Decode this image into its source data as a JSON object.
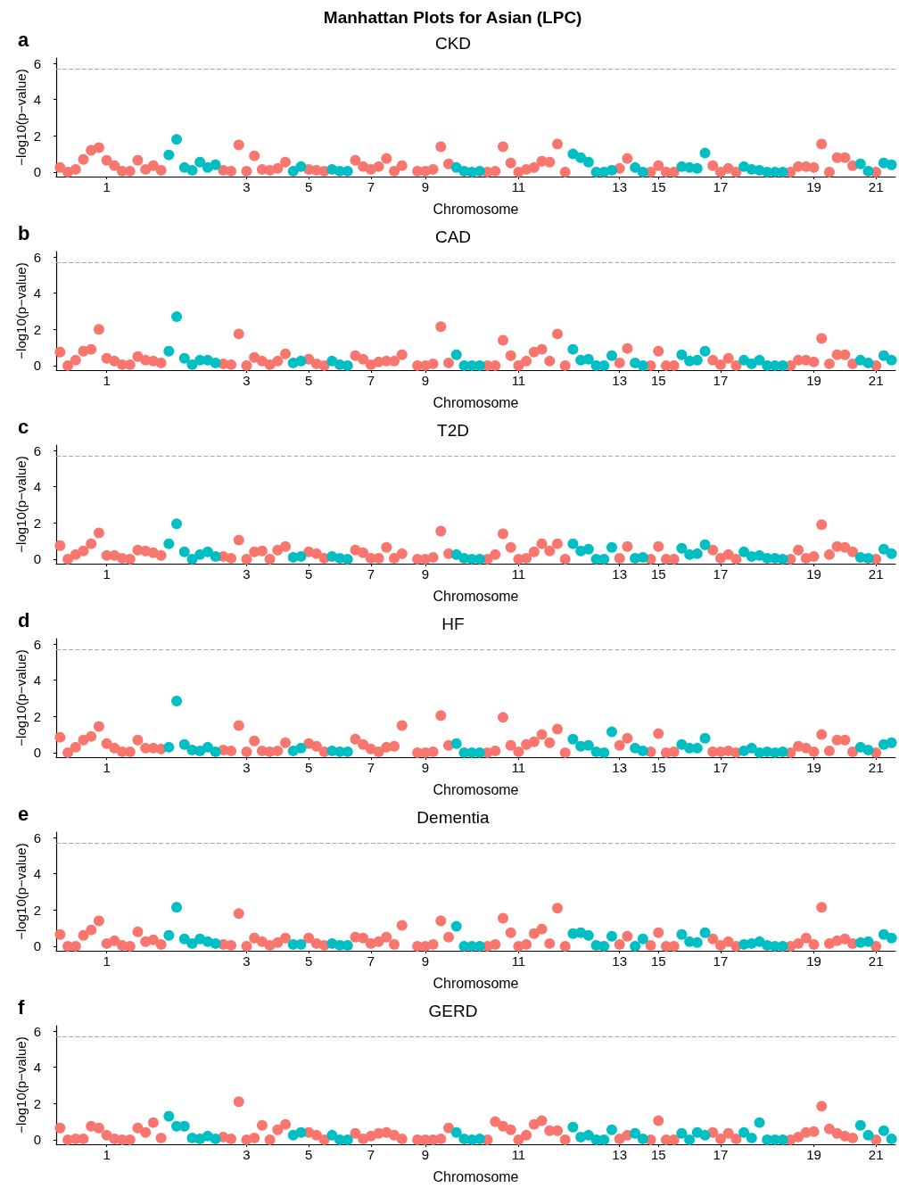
{
  "chart_data": [
    {
      "type": "scatter",
      "title": "CKD",
      "annotations": [
        "Manhattan Plots for Asian (LPC)",
        "a"
      ],
      "xlabel": "Chromosome",
      "ylabel": "−log10(p−value)",
      "marker": "circle",
      "categories": [
        null,
        null,
        null,
        null,
        null,
        null,
        "1",
        null,
        null,
        null,
        null,
        null,
        null,
        null,
        null,
        null,
        null,
        null,
        null,
        null,
        null,
        null,
        null,
        null,
        "3",
        null,
        null,
        null,
        null,
        null,
        null,
        null,
        "5",
        null,
        null,
        null,
        null,
        null,
        null,
        null,
        "7",
        null,
        null,
        null,
        null,
        null,
        null,
        "9",
        null,
        null,
        null,
        null,
        null,
        null,
        null,
        null,
        null,
        null,
        null,
        "11",
        null,
        null,
        null,
        null,
        null,
        null,
        null,
        null,
        null,
        null,
        null,
        null,
        "13",
        null,
        null,
        null,
        null,
        "15",
        null,
        null,
        null,
        null,
        null,
        null,
        null,
        "17",
        null,
        null,
        null,
        null,
        null,
        null,
        null,
        null,
        null,
        null,
        null,
        "19",
        null,
        null,
        null,
        null,
        null,
        null,
        null,
        "21",
        null,
        null
      ],
      "ylim": [
        -0.25,
        6.3
      ],
      "yticks": [
        0,
        2,
        4,
        6
      ],
      "ref_lines": [
        {
          "axis": "y",
          "value": 5.7,
          "color": "#a6a6a6",
          "line_style": "dashed"
        }
      ],
      "series": [
        {
          "color": "#f8766d",
          "values": [
            0.25,
            0,
            0.15,
            0.7,
            1.2,
            1.35,
            0.65,
            0.35,
            0.05,
            0.05,
            0.65,
            0.15,
            0.35,
            0.1,
            null,
            null,
            null,
            null,
            null,
            null,
            null,
            0.1,
            0.05,
            1.5,
            0.05,
            0.9,
            0.15,
            0.1,
            0.2,
            0.55,
            null,
            null,
            0.15,
            0.1,
            0.05,
            null,
            null,
            null,
            0.65,
            0.3,
            0.15,
            0.3,
            0.75,
            0.05,
            0.35,
            null,
            0.05,
            0.05,
            0.15,
            1.4,
            0.45,
            null,
            null,
            null,
            null,
            0,
            0.05,
            1.4,
            0.5,
            0,
            0.15,
            0.25,
            0.6,
            0.55,
            1.55,
            0,
            null,
            null,
            null,
            null,
            null,
            null,
            0.2,
            0.75,
            null,
            null,
            0,
            0.35,
            0,
            0,
            null,
            null,
            null,
            null,
            0.35,
            0,
            0.2,
            0,
            null,
            null,
            null,
            null,
            null,
            null,
            0,
            0.3,
            0.3,
            0.25,
            1.55,
            0,
            0.8,
            0.8,
            0.35,
            null,
            null,
            0,
            null,
            null
          ]
        },
        {
          "color": "#00bfc4",
          "values": [
            null,
            null,
            null,
            null,
            null,
            null,
            null,
            null,
            null,
            null,
            null,
            null,
            null,
            null,
            0.95,
            1.8,
            0.25,
            0.1,
            0.55,
            0.25,
            0.4,
            null,
            null,
            null,
            null,
            null,
            null,
            null,
            null,
            null,
            0.05,
            0.3,
            null,
            null,
            null,
            0.15,
            0.05,
            0.05,
            null,
            null,
            null,
            null,
            null,
            null,
            null,
            null,
            null,
            null,
            null,
            null,
            null,
            0.25,
            0.05,
            0,
            0.05,
            null,
            null,
            null,
            null,
            null,
            null,
            null,
            null,
            null,
            null,
            null,
            1,
            0.8,
            0.55,
            0,
            0,
            0.1,
            null,
            null,
            0.25,
            0,
            null,
            null,
            null,
            null,
            0.3,
            0.25,
            0.2,
            1.05,
            null,
            null,
            null,
            null,
            0.3,
            0.15,
            0.1,
            0,
            0,
            0,
            null,
            null,
            null,
            null,
            null,
            null,
            null,
            null,
            null,
            0.45,
            0.05,
            null,
            0.5,
            0.4
          ]
        }
      ]
    },
    {
      "type": "scatter",
      "title": "CAD",
      "annotations": [
        "b"
      ],
      "xlabel": "Chromosome",
      "ylabel": "−log10(p−value)",
      "marker": "circle",
      "categories": [
        null,
        null,
        null,
        null,
        null,
        null,
        "1",
        null,
        null,
        null,
        null,
        null,
        null,
        null,
        null,
        null,
        null,
        null,
        null,
        null,
        null,
        null,
        null,
        null,
        "3",
        null,
        null,
        null,
        null,
        null,
        null,
        null,
        "5",
        null,
        null,
        null,
        null,
        null,
        null,
        null,
        "7",
        null,
        null,
        null,
        null,
        null,
        null,
        "9",
        null,
        null,
        null,
        null,
        null,
        null,
        null,
        null,
        null,
        null,
        null,
        "11",
        null,
        null,
        null,
        null,
        null,
        null,
        null,
        null,
        null,
        null,
        null,
        null,
        "13",
        null,
        null,
        null,
        null,
        "15",
        null,
        null,
        null,
        null,
        null,
        null,
        null,
        "17",
        null,
        null,
        null,
        null,
        null,
        null,
        null,
        null,
        null,
        null,
        null,
        "19",
        null,
        null,
        null,
        null,
        null,
        null,
        null,
        "21",
        null,
        null
      ],
      "ylim": [
        -0.25,
        6.3
      ],
      "yticks": [
        0,
        2,
        4,
        6
      ],
      "ref_lines": [
        {
          "axis": "y",
          "value": 5.7,
          "color": "#a6a6a6",
          "line_style": "dashed"
        }
      ],
      "series": [
        {
          "color": "#f8766d",
          "values": [
            0.75,
            0,
            0.3,
            0.8,
            0.9,
            2,
            0.4,
            0.25,
            0.05,
            0.05,
            0.5,
            0.3,
            0.25,
            0.15,
            null,
            null,
            null,
            null,
            null,
            null,
            null,
            0.1,
            0.05,
            1.75,
            0,
            0.45,
            0.25,
            0.05,
            0.25,
            0.65,
            null,
            null,
            0.35,
            0.1,
            0,
            null,
            null,
            null,
            0.55,
            0.35,
            0.05,
            0.2,
            0.25,
            0.25,
            0.6,
            null,
            0,
            0,
            0.1,
            2.15,
            0.15,
            null,
            null,
            null,
            null,
            0,
            0,
            1.4,
            0.55,
            0,
            0.25,
            0.75,
            0.9,
            0.25,
            1.75,
            0,
            null,
            null,
            null,
            null,
            null,
            null,
            0.15,
            0.95,
            null,
            null,
            0,
            0.8,
            0,
            0,
            null,
            null,
            null,
            null,
            0.3,
            0.05,
            0.4,
            0,
            null,
            null,
            null,
            null,
            null,
            null,
            0,
            0.3,
            0.3,
            0.2,
            1.5,
            0.1,
            0.6,
            0.6,
            0.1,
            null,
            null,
            0,
            null,
            null
          ]
        },
        {
          "color": "#00bfc4",
          "values": [
            null,
            null,
            null,
            null,
            null,
            null,
            null,
            null,
            null,
            null,
            null,
            null,
            null,
            null,
            0.8,
            2.7,
            0.4,
            0.05,
            0.3,
            0.3,
            0.15,
            null,
            null,
            null,
            null,
            null,
            null,
            null,
            null,
            null,
            0.15,
            0.25,
            null,
            null,
            null,
            0.25,
            0.05,
            0,
            null,
            null,
            null,
            null,
            null,
            null,
            null,
            null,
            null,
            null,
            null,
            null,
            null,
            0.6,
            0,
            0,
            0,
            null,
            null,
            null,
            null,
            null,
            null,
            null,
            null,
            null,
            null,
            null,
            0.9,
            0.3,
            0.35,
            0,
            0,
            0.55,
            null,
            null,
            0.15,
            0,
            null,
            null,
            null,
            null,
            0.6,
            0.25,
            0.3,
            0.8,
            null,
            null,
            null,
            null,
            0.3,
            0.1,
            0.3,
            0,
            0,
            0,
            null,
            null,
            null,
            null,
            null,
            null,
            null,
            null,
            null,
            0.3,
            0.15,
            null,
            0.55,
            0.3
          ]
        }
      ]
    },
    {
      "type": "scatter",
      "title": "T2D",
      "annotations": [
        "c"
      ],
      "xlabel": "Chromosome",
      "ylabel": "−log10(p−value)",
      "marker": "circle",
      "categories": [
        null,
        null,
        null,
        null,
        null,
        null,
        "1",
        null,
        null,
        null,
        null,
        null,
        null,
        null,
        null,
        null,
        null,
        null,
        null,
        null,
        null,
        null,
        null,
        null,
        "3",
        null,
        null,
        null,
        null,
        null,
        null,
        null,
        "5",
        null,
        null,
        null,
        null,
        null,
        null,
        null,
        "7",
        null,
        null,
        null,
        null,
        null,
        null,
        "9",
        null,
        null,
        null,
        null,
        null,
        null,
        null,
        null,
        null,
        null,
        null,
        "11",
        null,
        null,
        null,
        null,
        null,
        null,
        null,
        null,
        null,
        null,
        null,
        null,
        "13",
        null,
        null,
        null,
        null,
        "15",
        null,
        null,
        null,
        null,
        null,
        null,
        null,
        "17",
        null,
        null,
        null,
        null,
        null,
        null,
        null,
        null,
        null,
        null,
        null,
        "19",
        null,
        null,
        null,
        null,
        null,
        null,
        null,
        "21",
        null,
        null
      ],
      "ylim": [
        -0.25,
        6.3
      ],
      "yticks": [
        0,
        2,
        4,
        6
      ],
      "ref_lines": [
        {
          "axis": "y",
          "value": 5.7,
          "color": "#a6a6a6",
          "line_style": "dashed"
        }
      ],
      "series": [
        {
          "color": "#f8766d",
          "values": [
            0.75,
            0,
            0.25,
            0.45,
            0.85,
            1.45,
            0.2,
            0.2,
            0.05,
            0,
            0.5,
            0.45,
            0.35,
            0.2,
            null,
            null,
            null,
            null,
            null,
            null,
            null,
            0.15,
            0.05,
            1.05,
            0,
            0.4,
            0.45,
            0,
            0.5,
            0.7,
            null,
            null,
            0.4,
            0.3,
            0.05,
            null,
            null,
            null,
            0.5,
            0.35,
            0.05,
            0.05,
            0.65,
            0.05,
            0.3,
            null,
            0,
            0,
            0.1,
            1.55,
            0.3,
            null,
            null,
            null,
            null,
            0,
            0.25,
            1.4,
            0.65,
            0,
            0.05,
            0.4,
            0.85,
            0.45,
            0.85,
            0,
            null,
            null,
            null,
            null,
            null,
            null,
            0.05,
            0.7,
            null,
            null,
            0,
            0.7,
            0,
            0,
            null,
            null,
            null,
            null,
            0.5,
            0.05,
            0.25,
            0,
            null,
            null,
            null,
            null,
            null,
            null,
            0,
            0.5,
            0.05,
            0.15,
            1.9,
            0.25,
            0.7,
            0.65,
            0.4,
            null,
            null,
            0,
            null,
            null
          ]
        },
        {
          "color": "#00bfc4",
          "values": [
            null,
            null,
            null,
            null,
            null,
            null,
            null,
            null,
            null,
            null,
            null,
            null,
            null,
            null,
            0.85,
            1.95,
            0.4,
            0,
            0.25,
            0.4,
            0.15,
            null,
            null,
            null,
            null,
            null,
            null,
            null,
            null,
            null,
            0.1,
            0.15,
            null,
            null,
            null,
            0.15,
            0.05,
            0,
            null,
            null,
            null,
            null,
            null,
            null,
            null,
            null,
            null,
            null,
            null,
            null,
            null,
            0.25,
            0.05,
            0,
            0,
            null,
            null,
            null,
            null,
            null,
            null,
            null,
            null,
            null,
            null,
            null,
            0.85,
            0.45,
            0.55,
            0,
            0,
            0.65,
            null,
            null,
            0.05,
            0.1,
            null,
            null,
            null,
            null,
            0.6,
            0.25,
            0.3,
            0.8,
            null,
            null,
            null,
            null,
            0.4,
            0.15,
            0.2,
            0.05,
            0.05,
            0,
            null,
            null,
            null,
            null,
            null,
            null,
            null,
            null,
            null,
            0.1,
            0.05,
            null,
            0.55,
            0.3
          ]
        }
      ]
    },
    {
      "type": "scatter",
      "title": "HF",
      "annotations": [
        "d"
      ],
      "xlabel": "Chromosome",
      "ylabel": "−log10(p−value)",
      "marker": "circle",
      "categories": [
        null,
        null,
        null,
        null,
        null,
        null,
        "1",
        null,
        null,
        null,
        null,
        null,
        null,
        null,
        null,
        null,
        null,
        null,
        null,
        null,
        null,
        null,
        null,
        null,
        "3",
        null,
        null,
        null,
        null,
        null,
        null,
        null,
        "5",
        null,
        null,
        null,
        null,
        null,
        null,
        null,
        "7",
        null,
        null,
        null,
        null,
        null,
        null,
        "9",
        null,
        null,
        null,
        null,
        null,
        null,
        null,
        null,
        null,
        null,
        null,
        "11",
        null,
        null,
        null,
        null,
        null,
        null,
        null,
        null,
        null,
        null,
        null,
        null,
        "13",
        null,
        null,
        null,
        null,
        "15",
        null,
        null,
        null,
        null,
        null,
        null,
        null,
        "17",
        null,
        null,
        null,
        null,
        null,
        null,
        null,
        null,
        null,
        null,
        null,
        "19",
        null,
        null,
        null,
        null,
        null,
        null,
        null,
        "21",
        null,
        null
      ],
      "ylim": [
        -0.25,
        6.3
      ],
      "yticks": [
        0,
        2,
        4,
        6
      ],
      "ref_lines": [
        {
          "axis": "y",
          "value": 5.7,
          "color": "#a6a6a6",
          "line_style": "dashed"
        }
      ],
      "series": [
        {
          "color": "#f8766d",
          "values": [
            0.85,
            0,
            0.3,
            0.7,
            0.9,
            1.45,
            0.5,
            0.25,
            0.05,
            0.05,
            0.7,
            0.25,
            0.25,
            0.2,
            null,
            null,
            null,
            null,
            null,
            null,
            null,
            0.15,
            0.1,
            1.5,
            0.05,
            0.65,
            0.1,
            0.05,
            0.1,
            0.55,
            null,
            null,
            0.5,
            0.35,
            0.05,
            null,
            null,
            null,
            0.75,
            0.45,
            0.2,
            0.05,
            0.3,
            0.35,
            1.5,
            null,
            0,
            0,
            0.05,
            2.05,
            0.4,
            null,
            null,
            null,
            null,
            0,
            0.1,
            1.95,
            0.4,
            0.05,
            0.45,
            0.6,
            1,
            0.55,
            1.3,
            0,
            null,
            null,
            null,
            null,
            null,
            null,
            0.4,
            0.8,
            null,
            null,
            0.05,
            1.05,
            0,
            0.05,
            null,
            null,
            null,
            null,
            0.05,
            0.05,
            0.1,
            0,
            null,
            null,
            null,
            null,
            null,
            null,
            0,
            0.35,
            0.25,
            0.05,
            1,
            0.1,
            0.7,
            0.7,
            0.05,
            null,
            null,
            0,
            null,
            null
          ]
        },
        {
          "color": "#00bfc4",
          "values": [
            null,
            null,
            null,
            null,
            null,
            null,
            null,
            null,
            null,
            null,
            null,
            null,
            null,
            null,
            0.3,
            2.85,
            0.45,
            0.15,
            0.1,
            0.3,
            0.05,
            null,
            null,
            null,
            null,
            null,
            null,
            null,
            null,
            null,
            0.1,
            0.25,
            null,
            null,
            null,
            0.1,
            0.05,
            0.05,
            null,
            null,
            null,
            null,
            null,
            null,
            null,
            null,
            null,
            null,
            null,
            null,
            null,
            0.5,
            0,
            0,
            0,
            null,
            null,
            null,
            null,
            null,
            null,
            null,
            null,
            null,
            null,
            null,
            0.75,
            0.35,
            0.4,
            0.05,
            0,
            1.15,
            null,
            null,
            0.25,
            0.1,
            null,
            null,
            null,
            null,
            0.45,
            0.25,
            0.25,
            0.8,
            null,
            null,
            null,
            null,
            0.1,
            0.25,
            0,
            0.05,
            0,
            0.05,
            null,
            null,
            null,
            null,
            null,
            null,
            null,
            null,
            null,
            0.3,
            0.15,
            null,
            0.45,
            0.55
          ]
        }
      ]
    },
    {
      "type": "scatter",
      "title": "Dementia",
      "annotations": [
        "e"
      ],
      "xlabel": "Chromosome",
      "ylabel": "−log10(p−value)",
      "marker": "circle",
      "categories": [
        null,
        null,
        null,
        null,
        null,
        null,
        "1",
        null,
        null,
        null,
        null,
        null,
        null,
        null,
        null,
        null,
        null,
        null,
        null,
        null,
        null,
        null,
        null,
        null,
        "3",
        null,
        null,
        null,
        null,
        null,
        null,
        null,
        "5",
        null,
        null,
        null,
        null,
        null,
        null,
        null,
        "7",
        null,
        null,
        null,
        null,
        null,
        null,
        "9",
        null,
        null,
        null,
        null,
        null,
        null,
        null,
        null,
        null,
        null,
        null,
        "11",
        null,
        null,
        null,
        null,
        null,
        null,
        null,
        null,
        null,
        null,
        null,
        null,
        "13",
        null,
        null,
        null,
        null,
        "15",
        null,
        null,
        null,
        null,
        null,
        null,
        null,
        "17",
        null,
        null,
        null,
        null,
        null,
        null,
        null,
        null,
        null,
        null,
        null,
        "19",
        null,
        null,
        null,
        null,
        null,
        null,
        null,
        "21",
        null,
        null
      ],
      "ylim": [
        -0.25,
        6.3
      ],
      "yticks": [
        0,
        2,
        4,
        6
      ],
      "ref_lines": [
        {
          "axis": "y",
          "value": 5.7,
          "color": "#a6a6a6",
          "line_style": "dashed"
        }
      ],
      "series": [
        {
          "color": "#f8766d",
          "values": [
            0.65,
            0,
            0,
            0.6,
            0.9,
            1.4,
            0.15,
            0.3,
            0.05,
            0,
            0.8,
            0.25,
            0.35,
            0.1,
            null,
            null,
            null,
            null,
            null,
            null,
            null,
            0.1,
            0.05,
            1.8,
            0,
            0.45,
            0.25,
            0.05,
            0.2,
            0.45,
            null,
            null,
            0.45,
            0.15,
            0.05,
            null,
            null,
            null,
            0.5,
            0.45,
            0.15,
            0.25,
            0.5,
            0.1,
            1.15,
            null,
            0,
            0,
            0.1,
            1.4,
            0.5,
            null,
            null,
            null,
            null,
            0,
            0.1,
            1.55,
            0.75,
            0,
            0.1,
            0.7,
            0.95,
            0.15,
            2.1,
            0,
            null,
            null,
            null,
            null,
            null,
            null,
            0.1,
            0.55,
            null,
            null,
            0.05,
            0.75,
            0,
            0,
            null,
            null,
            null,
            null,
            0.4,
            0.05,
            0.25,
            0,
            null,
            null,
            null,
            null,
            null,
            null,
            0,
            0.15,
            0.45,
            0.1,
            2.15,
            0.15,
            0.3,
            0.4,
            0.15,
            null,
            null,
            0,
            null,
            null
          ]
        },
        {
          "color": "#00bfc4",
          "values": [
            null,
            null,
            null,
            null,
            null,
            null,
            null,
            null,
            null,
            null,
            null,
            null,
            null,
            null,
            0.6,
            2.15,
            0.4,
            0.15,
            0.4,
            0.25,
            0.15,
            null,
            null,
            null,
            null,
            null,
            null,
            null,
            null,
            null,
            0.1,
            0.1,
            null,
            null,
            null,
            0.15,
            0.05,
            0.05,
            null,
            null,
            null,
            null,
            null,
            null,
            null,
            null,
            null,
            null,
            null,
            null,
            null,
            1.1,
            0,
            0,
            0,
            null,
            null,
            null,
            null,
            null,
            null,
            null,
            null,
            null,
            null,
            null,
            0.7,
            0.75,
            0.6,
            0.05,
            0,
            0.55,
            null,
            null,
            0,
            0.4,
            null,
            null,
            null,
            null,
            0.65,
            0.25,
            0.2,
            0.75,
            null,
            null,
            null,
            null,
            0.1,
            0.15,
            0.25,
            0.05,
            0,
            0,
            null,
            null,
            null,
            null,
            null,
            null,
            null,
            null,
            null,
            0.2,
            0.25,
            null,
            0.65,
            0.45
          ]
        }
      ]
    },
    {
      "type": "scatter",
      "title": "GERD",
      "annotations": [
        "f"
      ],
      "xlabel": "Chromosome",
      "ylabel": "−log10(p−value)",
      "marker": "circle",
      "categories": [
        null,
        null,
        null,
        null,
        null,
        null,
        "1",
        null,
        null,
        null,
        null,
        null,
        null,
        null,
        null,
        null,
        null,
        null,
        null,
        null,
        null,
        null,
        null,
        null,
        "3",
        null,
        null,
        null,
        null,
        null,
        null,
        null,
        "5",
        null,
        null,
        null,
        null,
        null,
        null,
        null,
        "7",
        null,
        null,
        null,
        null,
        null,
        null,
        "9",
        null,
        null,
        null,
        null,
        null,
        null,
        null,
        null,
        null,
        null,
        null,
        "11",
        null,
        null,
        null,
        null,
        null,
        null,
        null,
        null,
        null,
        null,
        null,
        null,
        "13",
        null,
        null,
        null,
        null,
        "15",
        null,
        null,
        null,
        null,
        null,
        null,
        null,
        "17",
        null,
        null,
        null,
        null,
        null,
        null,
        null,
        null,
        null,
        null,
        null,
        "19",
        null,
        null,
        null,
        null,
        null,
        null,
        null,
        "21",
        null,
        null
      ],
      "ylim": [
        -0.25,
        6.3
      ],
      "yticks": [
        0,
        2,
        4,
        6
      ],
      "ref_lines": [
        {
          "axis": "y",
          "value": 5.7,
          "color": "#a6a6a6",
          "line_style": "dashed"
        }
      ],
      "series": [
        {
          "color": "#f8766d",
          "values": [
            0.65,
            0,
            0.05,
            0.05,
            0.75,
            0.65,
            0.25,
            0.05,
            0,
            0,
            0.65,
            0.4,
            0.95,
            0.1,
            null,
            null,
            null,
            null,
            null,
            null,
            null,
            0.15,
            0.05,
            2.1,
            0,
            0.1,
            0.8,
            0,
            0.55,
            0.85,
            null,
            null,
            0.4,
            0.25,
            0,
            null,
            null,
            null,
            0.35,
            0.05,
            0.2,
            0.35,
            0.4,
            0.25,
            0.05,
            null,
            0,
            0,
            0,
            0.05,
            0.65,
            null,
            null,
            null,
            null,
            0,
            1,
            0.75,
            0.55,
            0,
            0.25,
            0.85,
            1.05,
            0.5,
            0.5,
            0,
            null,
            null,
            null,
            null,
            null,
            null,
            0.05,
            0.25,
            null,
            null,
            0,
            1.05,
            0,
            0,
            null,
            null,
            null,
            null,
            0.4,
            0.05,
            0.35,
            0.05,
            null,
            null,
            null,
            null,
            null,
            null,
            0,
            0.15,
            0.4,
            0.45,
            1.85,
            0.6,
            0.35,
            0.2,
            0.1,
            null,
            null,
            0,
            null,
            null
          ]
        },
        {
          "color": "#00bfc4",
          "values": [
            null,
            null,
            null,
            null,
            null,
            null,
            null,
            null,
            null,
            null,
            null,
            null,
            null,
            null,
            1.3,
            0.75,
            0.75,
            0.1,
            0.05,
            0.2,
            0.05,
            null,
            null,
            null,
            null,
            null,
            null,
            null,
            null,
            null,
            0.25,
            0.4,
            null,
            null,
            null,
            0.25,
            0,
            0,
            null,
            null,
            null,
            null,
            null,
            null,
            null,
            null,
            null,
            null,
            null,
            null,
            null,
            0.4,
            0.05,
            0,
            0.05,
            null,
            null,
            null,
            null,
            null,
            null,
            null,
            null,
            null,
            null,
            null,
            0.7,
            0.15,
            0.25,
            0,
            0,
            0.55,
            null,
            null,
            0.35,
            0.05,
            null,
            null,
            null,
            null,
            0.35,
            0,
            0.4,
            0.25,
            null,
            null,
            null,
            null,
            0.4,
            0.1,
            0.95,
            0,
            0,
            0,
            null,
            null,
            null,
            null,
            null,
            null,
            null,
            null,
            null,
            0.8,
            0.25,
            null,
            0.5,
            0.05
          ]
        }
      ]
    }
  ]
}
